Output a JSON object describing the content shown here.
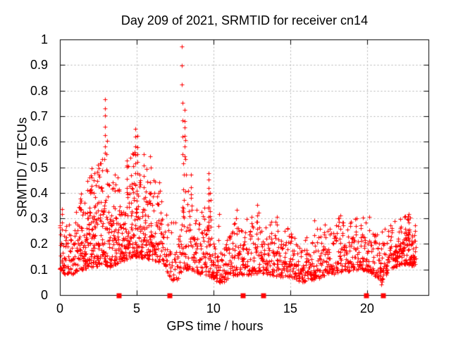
{
  "chart_data": {
    "type": "scatter",
    "title": "Day 209 of 2021, SRMTID for receiver cn14",
    "xlabel": "GPS time / hours",
    "ylabel": "SRMTID / TECUs",
    "xlim": [
      0,
      24
    ],
    "ylim": [
      0,
      1
    ],
    "xticks": {
      "values": [
        0,
        5,
        10,
        15,
        20
      ],
      "labels": [
        "0",
        "5",
        "10",
        "15",
        "20"
      ]
    },
    "yticks": {
      "values": [
        0,
        0.1,
        0.2,
        0.3,
        0.4,
        0.5,
        0.6,
        0.7,
        0.8,
        0.9,
        1
      ],
      "labels": [
        "0",
        "0.1",
        "0.2",
        "0.3",
        "0.4",
        "0.5",
        "0.6",
        "0.7",
        "0.8",
        "0.9",
        "1"
      ]
    },
    "grid": true,
    "legend": "none",
    "marker": {
      "glyph": "plus",
      "size": 7,
      "color": "#ff0000"
    },
    "style": {
      "grid_color": "#b0b0b0",
      "axis_color": "#000000",
      "background": "#ffffff",
      "tick_len": 7
    },
    "baseline_square_markers": {
      "glyph": "filled-square",
      "size": 7,
      "color": "#ff0000",
      "hours": [
        3.8,
        7.1,
        11.9,
        13.2,
        19.9,
        21.0
      ]
    },
    "band_envelope_note": "dense scatter of + points; columns [t_hours, y_low, y_high, points_per_epoch]",
    "envelope": [
      [
        0.0,
        0.1,
        0.32,
        5
      ],
      [
        0.4,
        0.08,
        0.28,
        4
      ],
      [
        0.8,
        0.08,
        0.27,
        4
      ],
      [
        1.2,
        0.1,
        0.36,
        5
      ],
      [
        1.6,
        0.1,
        0.42,
        6
      ],
      [
        2.0,
        0.11,
        0.47,
        7
      ],
      [
        2.4,
        0.11,
        0.48,
        7
      ],
      [
        2.8,
        0.12,
        0.54,
        7
      ],
      [
        3.2,
        0.11,
        0.48,
        6
      ],
      [
        3.6,
        0.12,
        0.45,
        6
      ],
      [
        4.0,
        0.13,
        0.48,
        6
      ],
      [
        4.4,
        0.14,
        0.52,
        6
      ],
      [
        4.8,
        0.15,
        0.56,
        7
      ],
      [
        5.2,
        0.15,
        0.54,
        6
      ],
      [
        5.6,
        0.14,
        0.5,
        6
      ],
      [
        6.0,
        0.14,
        0.46,
        5
      ],
      [
        6.4,
        0.13,
        0.42,
        5
      ],
      [
        6.8,
        0.12,
        0.36,
        4
      ],
      [
        7.2,
        0.06,
        0.28,
        3
      ],
      [
        7.6,
        0.05,
        0.3,
        3
      ],
      [
        8.0,
        0.1,
        0.36,
        4
      ],
      [
        8.4,
        0.1,
        0.42,
        4
      ],
      [
        8.8,
        0.09,
        0.34,
        4
      ],
      [
        9.2,
        0.08,
        0.32,
        4
      ],
      [
        9.6,
        0.08,
        0.36,
        5
      ],
      [
        10.0,
        0.06,
        0.25,
        5
      ],
      [
        10.3,
        0.05,
        0.17,
        4
      ],
      [
        10.6,
        0.05,
        0.22,
        4
      ],
      [
        11.0,
        0.07,
        0.26,
        4
      ],
      [
        11.4,
        0.08,
        0.31,
        4
      ],
      [
        11.8,
        0.08,
        0.28,
        4
      ],
      [
        12.2,
        0.08,
        0.3,
        4
      ],
      [
        12.6,
        0.08,
        0.33,
        4
      ],
      [
        13.0,
        0.09,
        0.32,
        4
      ],
      [
        13.4,
        0.08,
        0.28,
        4
      ],
      [
        13.8,
        0.08,
        0.3,
        4
      ],
      [
        14.2,
        0.07,
        0.29,
        4
      ],
      [
        14.6,
        0.07,
        0.25,
        4
      ],
      [
        15.0,
        0.07,
        0.27,
        4
      ],
      [
        15.4,
        0.06,
        0.23,
        4
      ],
      [
        15.8,
        0.05,
        0.22,
        4
      ],
      [
        16.2,
        0.06,
        0.23,
        4
      ],
      [
        16.6,
        0.06,
        0.26,
        4
      ],
      [
        17.0,
        0.07,
        0.26,
        4
      ],
      [
        17.4,
        0.08,
        0.29,
        4
      ],
      [
        17.8,
        0.08,
        0.3,
        4
      ],
      [
        18.2,
        0.09,
        0.3,
        4
      ],
      [
        18.6,
        0.09,
        0.27,
        4
      ],
      [
        19.0,
        0.09,
        0.29,
        4
      ],
      [
        19.4,
        0.1,
        0.31,
        4
      ],
      [
        19.8,
        0.1,
        0.31,
        4
      ],
      [
        20.2,
        0.09,
        0.29,
        4
      ],
      [
        20.6,
        0.07,
        0.27,
        4
      ],
      [
        21.0,
        0.05,
        0.25,
        4
      ],
      [
        21.4,
        0.1,
        0.27,
        4
      ],
      [
        21.8,
        0.11,
        0.29,
        5
      ],
      [
        22.2,
        0.12,
        0.3,
        5
      ],
      [
        22.6,
        0.12,
        0.31,
        6
      ],
      [
        23.0,
        0.11,
        0.3,
        6
      ],
      [
        23.2,
        0.13,
        0.28,
        5
      ]
    ],
    "spike_columns_note": "distinct vertical strings of + points [t_hours, y_from, y_to, count]",
    "spikes": [
      [
        0.15,
        0.28,
        0.34,
        3
      ],
      [
        1.35,
        0.33,
        0.4,
        3
      ],
      [
        2.05,
        0.4,
        0.5,
        4
      ],
      [
        2.5,
        0.42,
        0.51,
        3
      ],
      [
        2.95,
        0.55,
        0.77,
        7
      ],
      [
        3.05,
        0.44,
        0.6,
        4
      ],
      [
        3.6,
        0.4,
        0.47,
        3
      ],
      [
        4.35,
        0.42,
        0.53,
        4
      ],
      [
        4.9,
        0.44,
        0.65,
        7
      ],
      [
        5.05,
        0.48,
        0.62,
        5
      ],
      [
        5.45,
        0.42,
        0.55,
        4
      ],
      [
        5.9,
        0.4,
        0.54,
        4
      ],
      [
        6.45,
        0.35,
        0.44,
        3
      ],
      [
        7.95,
        0.83,
        0.97,
        3
      ],
      [
        7.98,
        0.55,
        0.75,
        4
      ],
      [
        8.05,
        0.32,
        0.52,
        5
      ],
      [
        8.12,
        0.55,
        0.72,
        6
      ],
      [
        8.18,
        0.4,
        0.6,
        4
      ],
      [
        8.55,
        0.34,
        0.47,
        4
      ],
      [
        9.7,
        0.28,
        0.48,
        8
      ],
      [
        9.8,
        0.26,
        0.4,
        5
      ],
      [
        10.35,
        0.22,
        0.31,
        3
      ],
      [
        11.5,
        0.26,
        0.33,
        3
      ],
      [
        12.85,
        0.28,
        0.35,
        3
      ],
      [
        14.15,
        0.25,
        0.31,
        3
      ],
      [
        16.55,
        0.24,
        0.29,
        2
      ],
      [
        18.25,
        0.26,
        0.31,
        2
      ],
      [
        20.15,
        0.26,
        0.31,
        2
      ],
      [
        20.9,
        0.04,
        0.12,
        5
      ],
      [
        22.7,
        0.26,
        0.31,
        3
      ]
    ],
    "generator": {
      "seed": 2021209,
      "epoch_step_hours": 0.055,
      "t_start": 0,
      "t_end": 23.2,
      "skew": 1.7
    }
  }
}
